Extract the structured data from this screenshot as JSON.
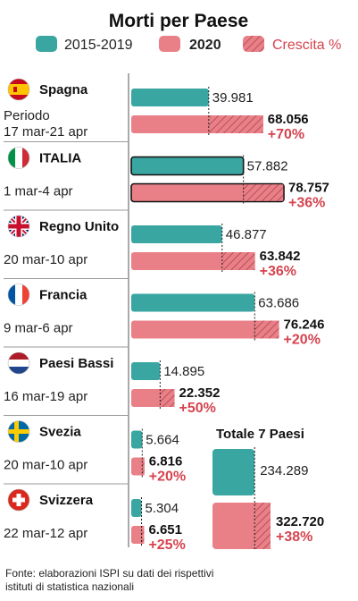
{
  "title": "Morti per Paese",
  "legend": {
    "baseline": "2015-2019",
    "current": "2020",
    "growth": "Crescita %"
  },
  "colors": {
    "baseline": "#3aa6a1",
    "current": "#e98088",
    "growth_text": "#d6434f",
    "separator": "#9a9a9a"
  },
  "chart_data": [
    {
      "type": "bar",
      "title": "Morti per Paese",
      "categories": [
        "Spagna",
        "ITALIA",
        "Regno Unito",
        "Francia",
        "Paesi Bassi",
        "Svezia",
        "Svizzera"
      ],
      "series": [
        {
          "name": "2015-2019",
          "values": [
            39981,
            57882,
            46877,
            63686,
            14895,
            5664,
            5304
          ]
        },
        {
          "name": "2020",
          "values": [
            68056,
            78757,
            63842,
            76246,
            22352,
            6816,
            6651
          ]
        }
      ],
      "growth": [
        70,
        36,
        36,
        20,
        50,
        20,
        25
      ],
      "rows": [
        {
          "country": "Spagna",
          "flag": "spain-flag-icon",
          "period_line1": "Periodo",
          "period_line2": "17 mar-21 apr",
          "baseline": 39981,
          "current": 68056,
          "baseline_label": "39.981",
          "current_label": "68.056",
          "growth_label": "+70%",
          "highlight": false
        },
        {
          "country": "ITALIA",
          "flag": "italy-flag-icon",
          "period_line1": "1 mar-4 apr",
          "period_line2": "",
          "baseline": 57882,
          "current": 78757,
          "baseline_label": "57.882",
          "current_label": "78.757",
          "growth_label": "+36%",
          "highlight": true
        },
        {
          "country": "Regno Unito",
          "flag": "uk-flag-icon",
          "period_line1": "20 mar-10 apr",
          "period_line2": "",
          "baseline": 46877,
          "current": 63842,
          "baseline_label": "46.877",
          "current_label": "63.842",
          "growth_label": "+36%",
          "highlight": false
        },
        {
          "country": "Francia",
          "flag": "france-flag-icon",
          "period_line1": "9 mar-6 apr",
          "period_line2": "",
          "baseline": 63686,
          "current": 76246,
          "baseline_label": "63.686",
          "current_label": "76.246",
          "growth_label": "+20%",
          "highlight": false
        },
        {
          "country": "Paesi Bassi",
          "flag": "netherlands-flag-icon",
          "period_line1": "16 mar-19 apr",
          "period_line2": "",
          "baseline": 14895,
          "current": 22352,
          "baseline_label": "14.895",
          "current_label": "22.352",
          "growth_label": "+50%",
          "highlight": false
        },
        {
          "country": "Svezia",
          "flag": "sweden-flag-icon",
          "period_line1": "20 mar-10 apr",
          "period_line2": "",
          "baseline": 5664,
          "current": 6816,
          "baseline_label": "5.664",
          "current_label": "6.816",
          "growth_label": "+20%",
          "highlight": false
        },
        {
          "country": "Svizzera",
          "flag": "switzerland-flag-icon",
          "period_line1": "22 mar-12 apr",
          "period_line2": "",
          "baseline": 5304,
          "current": 6651,
          "baseline_label": "5.304",
          "current_label": "6.651",
          "growth_label": "+25%",
          "highlight": false
        }
      ],
      "total": {
        "title": "Totale 7 Paesi",
        "baseline": 234289,
        "current": 322720,
        "baseline_label": "234.289",
        "current_label": "322.720",
        "growth_label": "+38%"
      }
    }
  ],
  "source_line1": "Fonte: elaborazioni ISPI su dati dei rispettivi",
  "source_line2": "istituti di statistica nazionali"
}
